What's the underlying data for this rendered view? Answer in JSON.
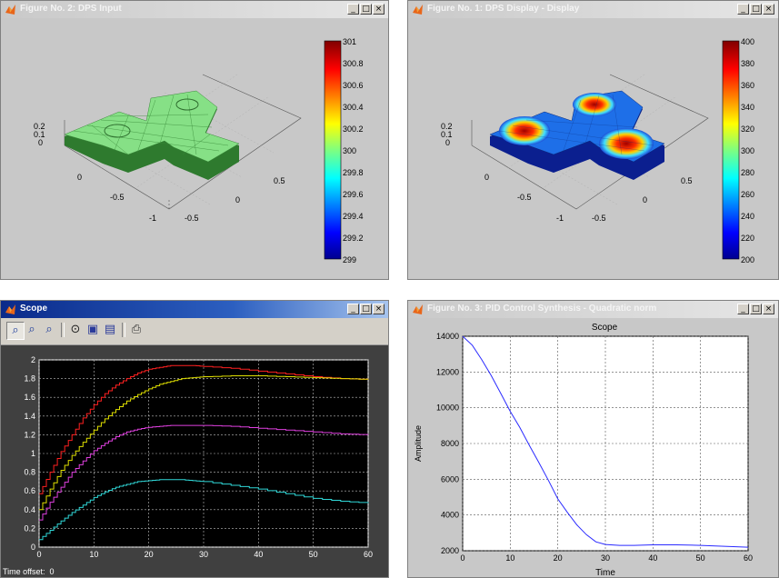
{
  "windows": {
    "dps_input": {
      "title": "Figure No. 2: DPS Input",
      "colorbar_ticks": [
        "301",
        "300.8",
        "300.6",
        "300.4",
        "300.2",
        "300",
        "299.8",
        "299.6",
        "299.4",
        "299.2",
        "299"
      ],
      "z_ticks": [
        "0.2",
        "0.1",
        "0"
      ],
      "x_ticks": [
        "0",
        "-0.5",
        "-1"
      ],
      "y_ticks": [
        "0.5",
        "0",
        "-0.5"
      ],
      "surface_color": "#7be07b"
    },
    "dps_display": {
      "title": "Figure No. 1: DPS Display - Display",
      "colorbar_ticks": [
        "400",
        "380",
        "360",
        "340",
        "320",
        "300",
        "280",
        "260",
        "240",
        "220",
        "200"
      ],
      "z_ticks": [
        "0.2",
        "0.1",
        "0"
      ],
      "x_ticks": [
        "0",
        "-0.5",
        "-1"
      ],
      "y_ticks": [
        "0.5",
        "0",
        "-0.5"
      ]
    },
    "scope": {
      "title": "Scope",
      "time_offset_label": "Time offset:",
      "time_offset_value": "0",
      "tool_icons": [
        "zoom-icon",
        "zoom-x-icon",
        "zoom-y-icon",
        "binoculars-icon",
        "save-axes-icon",
        "params-icon",
        "print-icon"
      ]
    },
    "pid": {
      "title": "Figure No. 3: PID Control Synthesis - Quadratic norm"
    }
  },
  "chart_data": [
    {
      "type": "line",
      "title": "",
      "xlabel": "",
      "ylabel": "",
      "xlim": [
        0,
        60
      ],
      "ylim": [
        0,
        2
      ],
      "x_ticks": [
        "0",
        "10",
        "20",
        "30",
        "40",
        "50",
        "60"
      ],
      "y_ticks": [
        "0",
        "0.2",
        "0.4",
        "0.6",
        "0.8",
        "1",
        "1.2",
        "1.4",
        "1.6",
        "1.8",
        "2"
      ],
      "grid": true,
      "x": [
        0,
        2,
        4,
        6,
        8,
        10,
        12,
        14,
        16,
        18,
        20,
        22,
        24,
        26,
        28,
        30,
        35,
        40,
        45,
        50,
        55,
        60
      ],
      "series": [
        {
          "color": "#ff2020",
          "values": [
            0.57,
            0.8,
            1.02,
            1.2,
            1.38,
            1.52,
            1.64,
            1.73,
            1.8,
            1.86,
            1.9,
            1.92,
            1.94,
            1.94,
            1.94,
            1.93,
            1.91,
            1.88,
            1.85,
            1.82,
            1.8,
            1.79
          ]
        },
        {
          "color": "#e0e000",
          "values": [
            0.4,
            0.62,
            0.82,
            0.98,
            1.12,
            1.25,
            1.37,
            1.47,
            1.56,
            1.63,
            1.69,
            1.74,
            1.77,
            1.8,
            1.81,
            1.82,
            1.83,
            1.83,
            1.82,
            1.81,
            1.8,
            1.79
          ]
        },
        {
          "color": "#e040e0",
          "values": [
            0.29,
            0.48,
            0.64,
            0.8,
            0.92,
            1.03,
            1.11,
            1.18,
            1.23,
            1.26,
            1.28,
            1.29,
            1.3,
            1.3,
            1.3,
            1.3,
            1.29,
            1.27,
            1.25,
            1.23,
            1.21,
            1.2
          ]
        },
        {
          "color": "#30d8d8",
          "values": [
            0.08,
            0.18,
            0.28,
            0.37,
            0.45,
            0.53,
            0.59,
            0.64,
            0.67,
            0.7,
            0.71,
            0.72,
            0.72,
            0.72,
            0.71,
            0.7,
            0.66,
            0.62,
            0.57,
            0.52,
            0.49,
            0.47
          ]
        }
      ]
    },
    {
      "type": "line",
      "title": "Scope",
      "xlabel": "Time",
      "ylabel": "Amplitude",
      "xlim": [
        0,
        60
      ],
      "ylim": [
        2000,
        14000
      ],
      "x_ticks": [
        "0",
        "10",
        "20",
        "30",
        "40",
        "50",
        "60"
      ],
      "y_ticks": [
        "2000",
        "4000",
        "6000",
        "8000",
        "10000",
        "12000",
        "14000"
      ],
      "grid": true,
      "x": [
        0,
        2,
        4,
        6,
        8,
        10,
        12,
        14,
        16,
        18,
        20,
        22,
        24,
        26,
        28,
        30,
        33,
        36,
        40,
        45,
        50,
        55,
        60
      ],
      "series": [
        {
          "color": "#2a2aff",
          "values": [
            14000,
            13500,
            12700,
            11800,
            10800,
            9800,
            8900,
            7900,
            6950,
            5950,
            4900,
            4150,
            3450,
            2900,
            2500,
            2350,
            2300,
            2300,
            2330,
            2330,
            2300,
            2250,
            2200
          ]
        }
      ]
    }
  ]
}
